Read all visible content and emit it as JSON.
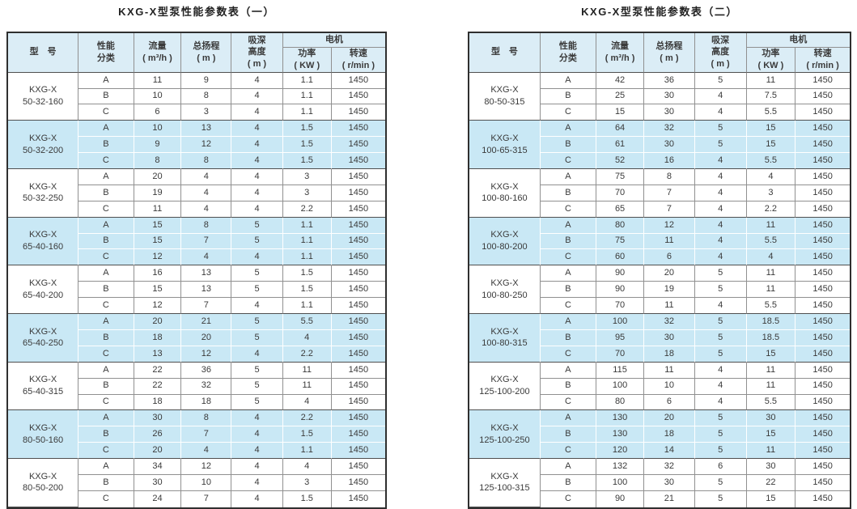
{
  "colors": {
    "highlight_row": "#c9e8f5",
    "header_bg": "#dbedf6",
    "text": "#3a3a3a",
    "border_outer": "#2f2f2f",
    "border_inner": "#909090",
    "border_group": "#4f4f4f",
    "border_white": "#ffffff",
    "page_bg": "#ffffff"
  },
  "tables": [
    {
      "title": "KXG-X型泵性能参数表（一）",
      "columns": {
        "model": [
          "型　号"
        ],
        "category": [
          "性能",
          "分类"
        ],
        "flow": [
          "流量",
          "( m³/h )"
        ],
        "total_head": [
          "总扬程",
          "( m )"
        ],
        "suction_depth": [
          "吸深",
          "高度",
          "( m )"
        ],
        "motor": [
          "电机"
        ],
        "power": [
          "功率",
          "( KW )"
        ],
        "speed": [
          "转速",
          "( r/min )"
        ]
      },
      "groups": [
        {
          "model": [
            "KXG-X",
            "50-32-160"
          ],
          "highlight": false,
          "rows": [
            [
              "A",
              "11",
              "9",
              "4",
              "1.1",
              "1450"
            ],
            [
              "B",
              "10",
              "8",
              "4",
              "1.1",
              "1450"
            ],
            [
              "C",
              "6",
              "3",
              "4",
              "1.1",
              "1450"
            ]
          ]
        },
        {
          "model": [
            "KXG-X",
            "50-32-200"
          ],
          "highlight": true,
          "rows": [
            [
              "A",
              "10",
              "13",
              "4",
              "1.5",
              "1450"
            ],
            [
              "B",
              "9",
              "12",
              "4",
              "1.5",
              "1450"
            ],
            [
              "C",
              "8",
              "8",
              "4",
              "1.5",
              "1450"
            ]
          ]
        },
        {
          "model": [
            "KXG-X",
            "50-32-250"
          ],
          "highlight": false,
          "rows": [
            [
              "A",
              "20",
              "4",
              "4",
              "3",
              "1450"
            ],
            [
              "B",
              "19",
              "4",
              "4",
              "3",
              "1450"
            ],
            [
              "C",
              "11",
              "4",
              "4",
              "2.2",
              "1450"
            ]
          ]
        },
        {
          "model": [
            "KXG-X",
            "65-40-160"
          ],
          "highlight": true,
          "rows": [
            [
              "A",
              "15",
              "8",
              "5",
              "1.1",
              "1450"
            ],
            [
              "B",
              "15",
              "7",
              "5",
              "1.1",
              "1450"
            ],
            [
              "C",
              "12",
              "4",
              "4",
              "1.1",
              "1450"
            ]
          ]
        },
        {
          "model": [
            "KXG-X",
            "65-40-200"
          ],
          "highlight": false,
          "rows": [
            [
              "A",
              "16",
              "13",
              "5",
              "1.5",
              "1450"
            ],
            [
              "B",
              "15",
              "13",
              "5",
              "1.5",
              "1450"
            ],
            [
              "C",
              "12",
              "7",
              "4",
              "1.1",
              "1450"
            ]
          ]
        },
        {
          "model": [
            "KXG-X",
            "65-40-250"
          ],
          "highlight": true,
          "rows": [
            [
              "A",
              "20",
              "21",
              "5",
              "5.5",
              "1450"
            ],
            [
              "B",
              "18",
              "20",
              "5",
              "4",
              "1450"
            ],
            [
              "C",
              "13",
              "12",
              "4",
              "2.2",
              "1450"
            ]
          ]
        },
        {
          "model": [
            "KXG-X",
            "65-40-315"
          ],
          "highlight": false,
          "rows": [
            [
              "A",
              "22",
              "36",
              "5",
              "11",
              "1450"
            ],
            [
              "B",
              "22",
              "32",
              "5",
              "11",
              "1450"
            ],
            [
              "C",
              "18",
              "18",
              "5",
              "4",
              "1450"
            ]
          ]
        },
        {
          "model": [
            "KXG-X",
            "80-50-160"
          ],
          "highlight": true,
          "rows": [
            [
              "A",
              "30",
              "8",
              "4",
              "2.2",
              "1450"
            ],
            [
              "B",
              "26",
              "7",
              "4",
              "1.5",
              "1450"
            ],
            [
              "C",
              "20",
              "4",
              "4",
              "1.1",
              "1450"
            ]
          ]
        },
        {
          "model": [
            "KXG-X",
            "80-50-200"
          ],
          "highlight": false,
          "rows": [
            [
              "A",
              "34",
              "12",
              "4",
              "4",
              "1450"
            ],
            [
              "B",
              "30",
              "10",
              "4",
              "3",
              "1450"
            ],
            [
              "C",
              "24",
              "7",
              "4",
              "1.5",
              "1450"
            ]
          ]
        }
      ]
    },
    {
      "title": "KXG-X型泵性能参数表（二）",
      "columns": {
        "model": [
          "型　号"
        ],
        "category": [
          "性能",
          "分类"
        ],
        "flow": [
          "流量",
          "( m³/h )"
        ],
        "total_head": [
          "总扬程",
          "( m )"
        ],
        "suction_depth": [
          "吸深",
          "高度",
          "( m )"
        ],
        "motor": [
          "电机"
        ],
        "power": [
          "功率",
          "( KW )"
        ],
        "speed": [
          "转速",
          "( r/min )"
        ]
      },
      "groups": [
        {
          "model": [
            "KXG-X",
            "80-50-315"
          ],
          "highlight": false,
          "rows": [
            [
              "A",
              "42",
              "36",
              "5",
              "11",
              "1450"
            ],
            [
              "B",
              "25",
              "30",
              "4",
              "7.5",
              "1450"
            ],
            [
              "C",
              "15",
              "30",
              "4",
              "5.5",
              "1450"
            ]
          ]
        },
        {
          "model": [
            "KXG-X",
            "100-65-315"
          ],
          "highlight": true,
          "rows": [
            [
              "A",
              "64",
              "32",
              "5",
              "15",
              "1450"
            ],
            [
              "B",
              "61",
              "30",
              "5",
              "15",
              "1450"
            ],
            [
              "C",
              "52",
              "16",
              "4",
              "5.5",
              "1450"
            ]
          ]
        },
        {
          "model": [
            "KXG-X",
            "100-80-160"
          ],
          "highlight": false,
          "rows": [
            [
              "A",
              "75",
              "8",
              "4",
              "4",
              "1450"
            ],
            [
              "B",
              "70",
              "7",
              "4",
              "3",
              "1450"
            ],
            [
              "C",
              "65",
              "7",
              "4",
              "2.2",
              "1450"
            ]
          ]
        },
        {
          "model": [
            "KXG-X",
            "100-80-200"
          ],
          "highlight": true,
          "rows": [
            [
              "A",
              "80",
              "12",
              "4",
              "11",
              "1450"
            ],
            [
              "B",
              "75",
              "11",
              "4",
              "5.5",
              "1450"
            ],
            [
              "C",
              "60",
              "6",
              "4",
              "4",
              "1450"
            ]
          ]
        },
        {
          "model": [
            "KXG-X",
            "100-80-250"
          ],
          "highlight": false,
          "rows": [
            [
              "A",
              "90",
              "20",
              "5",
              "11",
              "1450"
            ],
            [
              "B",
              "90",
              "19",
              "5",
              "11",
              "1450"
            ],
            [
              "C",
              "70",
              "11",
              "4",
              "5.5",
              "1450"
            ]
          ]
        },
        {
          "model": [
            "KXG-X",
            "100-80-315"
          ],
          "highlight": true,
          "rows": [
            [
              "A",
              "100",
              "32",
              "5",
              "18.5",
              "1450"
            ],
            [
              "B",
              "95",
              "30",
              "5",
              "18.5",
              "1450"
            ],
            [
              "C",
              "70",
              "18",
              "5",
              "15",
              "1450"
            ]
          ]
        },
        {
          "model": [
            "KXG-X",
            "125-100-200"
          ],
          "highlight": false,
          "rows": [
            [
              "A",
              "115",
              "11",
              "4",
              "11",
              "1450"
            ],
            [
              "B",
              "100",
              "10",
              "4",
              "11",
              "1450"
            ],
            [
              "C",
              "80",
              "6",
              "4",
              "5.5",
              "1450"
            ]
          ]
        },
        {
          "model": [
            "KXG-X",
            "125-100-250"
          ],
          "highlight": true,
          "rows": [
            [
              "A",
              "130",
              "20",
              "5",
              "30",
              "1450"
            ],
            [
              "B",
              "130",
              "18",
              "5",
              "15",
              "1450"
            ],
            [
              "C",
              "120",
              "14",
              "5",
              "11",
              "1450"
            ]
          ]
        },
        {
          "model": [
            "KXG-X",
            "125-100-315"
          ],
          "highlight": false,
          "rows": [
            [
              "A",
              "132",
              "32",
              "6",
              "30",
              "1450"
            ],
            [
              "B",
              "100",
              "30",
              "5",
              "22",
              "1450"
            ],
            [
              "C",
              "90",
              "21",
              "5",
              "15",
              "1450"
            ]
          ]
        }
      ]
    }
  ]
}
